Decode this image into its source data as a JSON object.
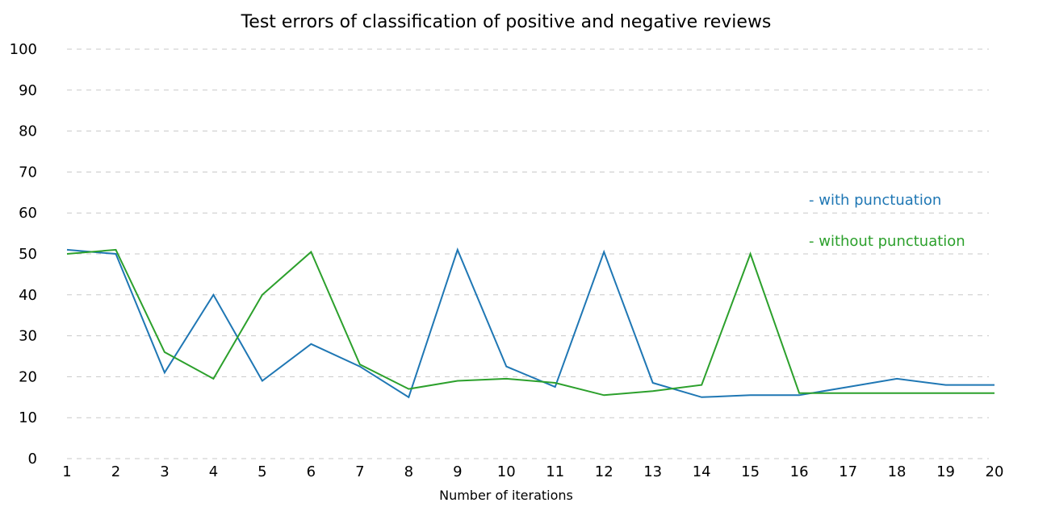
{
  "chart_data": {
    "type": "line",
    "title": "Test errors of classification of positive and negative reviews",
    "xlabel": "Number of iterations",
    "ylabel": "",
    "x": [
      1,
      2,
      3,
      4,
      5,
      6,
      7,
      8,
      9,
      10,
      11,
      12,
      13,
      14,
      15,
      16,
      17,
      18,
      19,
      20
    ],
    "xlim": [
      1,
      20
    ],
    "ylim": [
      0,
      100
    ],
    "x_ticks": [
      "1",
      "2",
      "3",
      "4",
      "5",
      "6",
      "7",
      "8",
      "9",
      "10",
      "11",
      "12",
      "13",
      "14",
      "15",
      "16",
      "17",
      "18",
      "19",
      "20"
    ],
    "y_ticks": [
      "0",
      "10",
      "20",
      "30",
      "40",
      "50",
      "60",
      "70",
      "80",
      "90",
      "100"
    ],
    "grid": "horizontal dashed",
    "legend_position": "right",
    "series": [
      {
        "name": "- with punctuation",
        "color": "#1f77b4",
        "values": [
          51,
          50,
          21,
          40,
          19,
          28,
          22.5,
          15,
          51,
          22.5,
          17.5,
          50.5,
          18.5,
          15,
          15.5,
          15.5,
          17.5,
          19.5,
          18,
          18
        ]
      },
      {
        "name": "- without punctuation",
        "color": "#2ca02c",
        "values": [
          50,
          51,
          26,
          19.5,
          40,
          50.5,
          23,
          17,
          19,
          19.5,
          18.5,
          15.5,
          16.5,
          18,
          50,
          16,
          16,
          16,
          16,
          16
        ]
      }
    ]
  }
}
